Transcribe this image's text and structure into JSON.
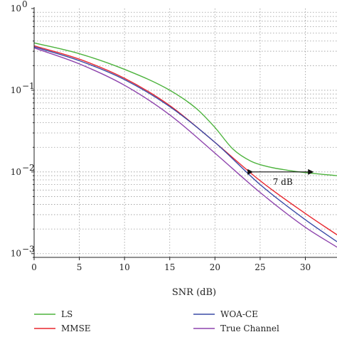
{
  "chart_data": {
    "type": "line",
    "xlabel": "SNR (dB)",
    "ylabel": "",
    "x_scale": "linear",
    "y_scale": "log",
    "xlim": [
      0,
      33.5
    ],
    "ylim": [
      0.0009,
      1
    ],
    "grid": true,
    "legend_position": "bottom",
    "x_ticks": [
      0,
      5,
      10,
      15,
      20,
      25,
      30
    ],
    "x_tick_labels": [
      "0",
      "5",
      "10",
      "15",
      "20",
      "25",
      "30"
    ],
    "y_ticks": [
      1,
      0.1,
      0.01,
      0.001
    ],
    "y_tick_labels": [
      {
        "base": "10",
        "exp": "0"
      },
      {
        "base": "10",
        "exp": "−1"
      },
      {
        "base": "10",
        "exp": "−2"
      },
      {
        "base": "10",
        "exp": "−3"
      }
    ],
    "series": [
      {
        "name": "LS",
        "color": "#4db33d",
        "x": [
          0,
          5,
          10,
          15,
          18,
          20,
          22,
          24,
          26,
          28,
          30,
          33.5
        ],
        "y": [
          0.38,
          0.28,
          0.18,
          0.1,
          0.059,
          0.035,
          0.019,
          0.0135,
          0.0115,
          0.0105,
          0.0098,
          0.009
        ]
      },
      {
        "name": "MMSE",
        "color": "#e8262e",
        "x": [
          0,
          5,
          10,
          15,
          20,
          25,
          30,
          33.5
        ],
        "y": [
          0.35,
          0.24,
          0.14,
          0.065,
          0.023,
          0.0078,
          0.0031,
          0.0017
        ]
      },
      {
        "name": "WOA-CE",
        "color": "#3a4aa6",
        "x": [
          0,
          5,
          10,
          15,
          20,
          25,
          30,
          33.5
        ],
        "y": [
          0.34,
          0.23,
          0.135,
          0.063,
          0.023,
          0.007,
          0.0026,
          0.0014
        ]
      },
      {
        "name": "True Channel",
        "color": "#8e44ad",
        "x": [
          0,
          5,
          10,
          15,
          20,
          25,
          30,
          33.5
        ],
        "y": [
          0.33,
          0.21,
          0.115,
          0.05,
          0.017,
          0.0056,
          0.0021,
          0.0012
        ]
      }
    ],
    "annotations": [
      {
        "text": "7 dB",
        "arrow_from_x": 24,
        "arrow_to_x": 31,
        "arrow_y": 0.01,
        "text_x": 27.5,
        "text_y": 0.0075
      }
    ]
  }
}
